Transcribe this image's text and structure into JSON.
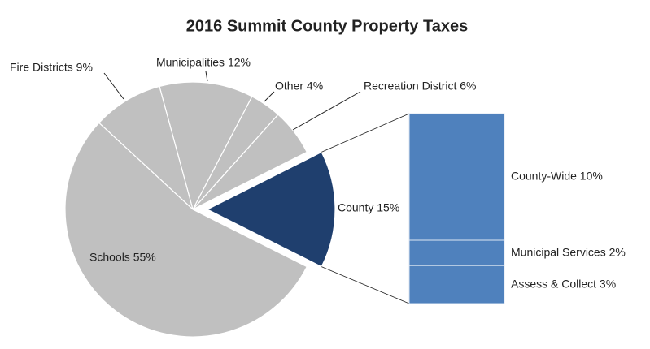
{
  "chart_data": {
    "type": "pie-of-bar",
    "title": "2016 Summit County Property Taxes",
    "pie": {
      "values": [
        15,
        6,
        4,
        12,
        9,
        55
      ],
      "value_labels": [
        "County 15%",
        "Recreation District 6%",
        "Other 4%",
        "Municipalities 12%",
        "Fire Districts 9%",
        "Schools 55%"
      ],
      "colors": [
        "#1f3f6e",
        "#c0c0c0",
        "#c0c0c0",
        "#c0c0c0",
        "#c0c0c0",
        "#c0c0c0"
      ]
    },
    "bar": {
      "values": [
        10,
        2,
        3
      ],
      "value_labels": [
        "County-Wide 10%",
        "Municipal Services 2%",
        "Assess & Collect 3%"
      ],
      "color": "#4f81bd"
    }
  }
}
